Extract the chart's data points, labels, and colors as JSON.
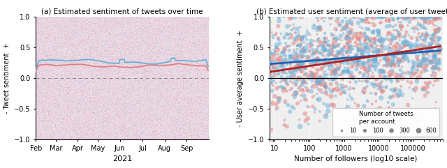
{
  "title_a": "(a) Estimated sentiment of tweets over time",
  "title_b": "(b) Estimated user sentiment (average of user tweets)",
  "ylabel_a": "- Tweet sentiment  +",
  "ylabel_b": "- User average sentiment  +",
  "xlabel_a": "2021",
  "xlabel_b": "Number of followers (log10 scale)",
  "ylim": [
    -1.0,
    1.0
  ],
  "yticks": [
    -1.0,
    -0.5,
    0.0,
    0.5,
    1.0
  ],
  "month_positions": [
    0,
    28,
    59,
    87,
    118,
    150,
    181,
    212
  ],
  "month_labels": [
    "Feb",
    "Mar",
    "Apr",
    "May",
    "Jun",
    "Jul",
    "Aug",
    "Sep"
  ],
  "n_days": 243,
  "blue_mean_a": 0.27,
  "red_mean_a": 0.2,
  "blue_color": "#6aafd6",
  "red_color": "#e08080",
  "bg_color_a": "#ecdce8",
  "bg_color_b": "#efefef",
  "scatter_alpha_a": 0.12,
  "scatter_alpha_b": 0.5,
  "n_scatter_a": 30000,
  "n_users": 1500,
  "legend_sizes": [
    10,
    100,
    300,
    600
  ],
  "legend_labels": [
    "10",
    "100",
    "300",
    "600"
  ],
  "xlim_b": [
    7,
    700000
  ],
  "blue_trend_start": 0.23,
  "blue_trend_end": 0.45,
  "red_trend_start": 0.1,
  "red_trend_end": 0.52,
  "trend_blue_color": "#2060b0",
  "trend_red_color": "#b02020"
}
